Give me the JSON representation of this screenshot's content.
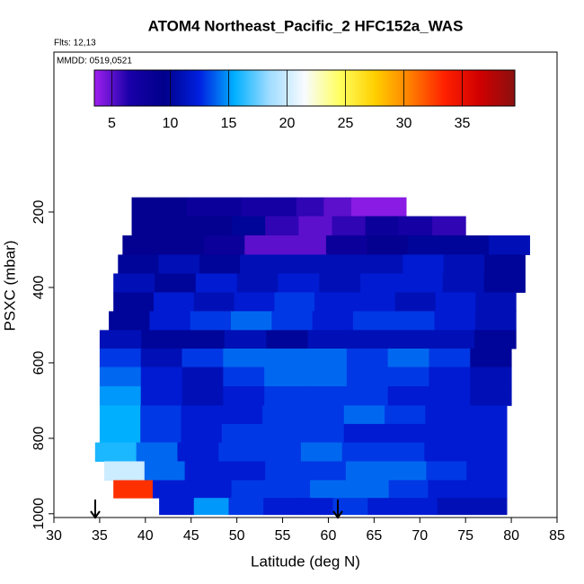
{
  "chart_data": {
    "type": "curtain",
    "title": "ATOM4 Northeast_Pacific_2 HFC152a_WAS",
    "subtitle": "Flts: 12,13",
    "annotation": "MMDD: 0519,0521",
    "x_label": "Latitude (deg N)",
    "y_label": "PSXC (mbar)",
    "xlim": [
      30,
      85
    ],
    "xticks": [
      30,
      35,
      40,
      45,
      50,
      55,
      60,
      65,
      70,
      75,
      80,
      85
    ],
    "ylim": [
      1010,
      -224
    ],
    "yticks": [
      200,
      400,
      600,
      800,
      1000
    ],
    "colorbar": {
      "range": [
        3.5,
        39.5
      ],
      "ticks": [
        5,
        10,
        15,
        20,
        25,
        30,
        35
      ],
      "colors": [
        "#a020f0",
        "#1800a8",
        "#00008b",
        "#0020e0",
        "#00b0ff",
        "#a0dcff",
        "#f8fbff",
        "#ffff60",
        "#ffd000",
        "#ff8000",
        "#ff2000",
        "#d00000",
        "#8b1010"
      ]
    },
    "rows": [
      {
        "pressure": 186,
        "lat_range": [
          38.5,
          68.5
        ],
        "values": [
          9,
          9,
          8,
          8,
          7,
          7,
          6,
          5,
          4,
          4
        ]
      },
      {
        "pressure": 236,
        "lat_range": [
          38.5,
          75
        ],
        "values": [
          9,
          9,
          9,
          10,
          6,
          5,
          6,
          8,
          7,
          6
        ]
      },
      {
        "pressure": 288,
        "lat_range": [
          37.5,
          82
        ],
        "values": [
          9,
          9,
          8,
          5,
          5,
          8,
          9,
          10,
          10,
          11
        ]
      },
      {
        "pressure": 338,
        "lat_range": [
          37,
          81.5
        ],
        "values": [
          10,
          11,
          10,
          11,
          11,
          11,
          11,
          12,
          11,
          10
        ]
      },
      {
        "pressure": 388,
        "lat_range": [
          36.5,
          81.5
        ],
        "values": [
          11,
          10,
          12,
          11,
          12,
          11,
          12,
          12,
          11,
          10
        ]
      },
      {
        "pressure": 438,
        "lat_range": [
          36.5,
          80.5
        ],
        "values": [
          10,
          12,
          11,
          12,
          13,
          12,
          12,
          11,
          12,
          11
        ]
      },
      {
        "pressure": 488,
        "lat_range": [
          36,
          80.5
        ],
        "values": [
          10,
          12,
          13,
          14,
          13,
          12,
          13,
          13,
          12,
          11
        ]
      },
      {
        "pressure": 538,
        "lat_range": [
          35,
          80.5
        ],
        "values": [
          11,
          10,
          10,
          11,
          10,
          11,
          11,
          11,
          11,
          10
        ]
      },
      {
        "pressure": 586,
        "lat_range": [
          35,
          80
        ],
        "values": [
          13,
          11,
          13,
          14,
          14,
          14,
          13,
          14,
          13,
          10
        ]
      },
      {
        "pressure": 636,
        "lat_range": [
          35,
          80
        ],
        "values": [
          14,
          12,
          11,
          13,
          14,
          14,
          13,
          13,
          12,
          11
        ]
      },
      {
        "pressure": 688,
        "lat_range": [
          35,
          80
        ],
        "values": [
          15,
          12,
          11,
          12,
          13,
          13,
          13,
          12,
          12,
          11
        ]
      },
      {
        "pressure": 738,
        "lat_range": [
          35,
          79.5
        ],
        "values": [
          15.5,
          13,
          12,
          12,
          13,
          13,
          14,
          13,
          12,
          12
        ]
      },
      {
        "pressure": 786,
        "lat_range": [
          35,
          79.5
        ],
        "values": [
          15.5,
          13,
          12,
          13,
          13,
          13,
          12,
          12,
          12,
          12
        ]
      },
      {
        "pressure": 836,
        "lat_range": [
          34.5,
          79.5
        ],
        "values": [
          16,
          14,
          12,
          13,
          13,
          14,
          13,
          13,
          12,
          12
        ]
      },
      {
        "pressure": 886,
        "lat_range": [
          35.5,
          79.5
        ],
        "values": [
          20,
          14,
          12,
          12,
          13,
          13,
          14,
          14,
          13,
          12
        ]
      },
      {
        "pressure": 936,
        "lat_range": [
          36.5,
          79.5
        ],
        "values": [
          33,
          12,
          12,
          13,
          13,
          14,
          14,
          13,
          12,
          12
        ]
      },
      {
        "pressure": 980,
        "lat_range": [
          41.5,
          79.5
        ],
        "values": [
          12,
          15,
          13,
          12,
          12,
          13,
          12,
          12,
          11,
          11
        ]
      }
    ]
  }
}
